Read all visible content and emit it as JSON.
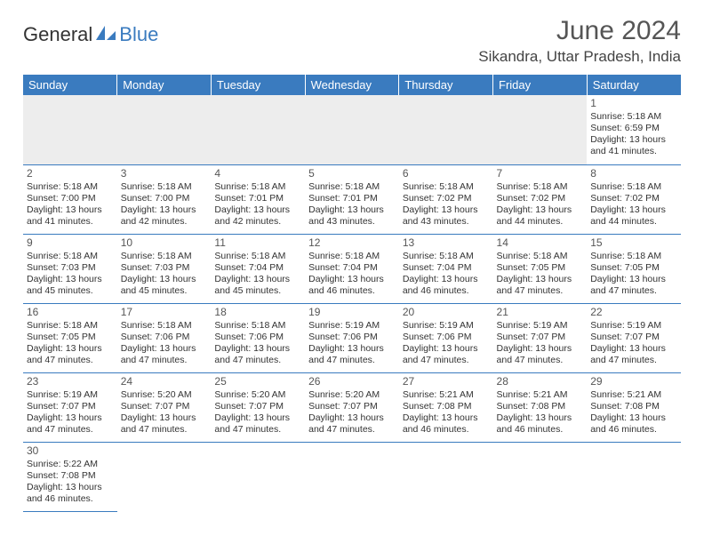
{
  "logo": {
    "gen": "General",
    "blue": "Blue"
  },
  "title": "June 2024",
  "location": "Sikandra, Uttar Pradesh, India",
  "colors": {
    "header_bg": "#3a7bbf",
    "header_text": "#ffffff",
    "border": "#3a7bbf",
    "empty_bg": "#ededed"
  },
  "weekdays": [
    "Sunday",
    "Monday",
    "Tuesday",
    "Wednesday",
    "Thursday",
    "Friday",
    "Saturday"
  ],
  "weeks": [
    [
      null,
      null,
      null,
      null,
      null,
      null,
      {
        "d": "1",
        "rise": "5:18 AM",
        "set": "6:59 PM",
        "day": "13 hours and 41 minutes."
      }
    ],
    [
      {
        "d": "2",
        "rise": "5:18 AM",
        "set": "7:00 PM",
        "day": "13 hours and 41 minutes."
      },
      {
        "d": "3",
        "rise": "5:18 AM",
        "set": "7:00 PM",
        "day": "13 hours and 42 minutes."
      },
      {
        "d": "4",
        "rise": "5:18 AM",
        "set": "7:01 PM",
        "day": "13 hours and 42 minutes."
      },
      {
        "d": "5",
        "rise": "5:18 AM",
        "set": "7:01 PM",
        "day": "13 hours and 43 minutes."
      },
      {
        "d": "6",
        "rise": "5:18 AM",
        "set": "7:02 PM",
        "day": "13 hours and 43 minutes."
      },
      {
        "d": "7",
        "rise": "5:18 AM",
        "set": "7:02 PM",
        "day": "13 hours and 44 minutes."
      },
      {
        "d": "8",
        "rise": "5:18 AM",
        "set": "7:02 PM",
        "day": "13 hours and 44 minutes."
      }
    ],
    [
      {
        "d": "9",
        "rise": "5:18 AM",
        "set": "7:03 PM",
        "day": "13 hours and 45 minutes."
      },
      {
        "d": "10",
        "rise": "5:18 AM",
        "set": "7:03 PM",
        "day": "13 hours and 45 minutes."
      },
      {
        "d": "11",
        "rise": "5:18 AM",
        "set": "7:04 PM",
        "day": "13 hours and 45 minutes."
      },
      {
        "d": "12",
        "rise": "5:18 AM",
        "set": "7:04 PM",
        "day": "13 hours and 46 minutes."
      },
      {
        "d": "13",
        "rise": "5:18 AM",
        "set": "7:04 PM",
        "day": "13 hours and 46 minutes."
      },
      {
        "d": "14",
        "rise": "5:18 AM",
        "set": "7:05 PM",
        "day": "13 hours and 47 minutes."
      },
      {
        "d": "15",
        "rise": "5:18 AM",
        "set": "7:05 PM",
        "day": "13 hours and 47 minutes."
      }
    ],
    [
      {
        "d": "16",
        "rise": "5:18 AM",
        "set": "7:05 PM",
        "day": "13 hours and 47 minutes."
      },
      {
        "d": "17",
        "rise": "5:18 AM",
        "set": "7:06 PM",
        "day": "13 hours and 47 minutes."
      },
      {
        "d": "18",
        "rise": "5:18 AM",
        "set": "7:06 PM",
        "day": "13 hours and 47 minutes."
      },
      {
        "d": "19",
        "rise": "5:19 AM",
        "set": "7:06 PM",
        "day": "13 hours and 47 minutes."
      },
      {
        "d": "20",
        "rise": "5:19 AM",
        "set": "7:06 PM",
        "day": "13 hours and 47 minutes."
      },
      {
        "d": "21",
        "rise": "5:19 AM",
        "set": "7:07 PM",
        "day": "13 hours and 47 minutes."
      },
      {
        "d": "22",
        "rise": "5:19 AM",
        "set": "7:07 PM",
        "day": "13 hours and 47 minutes."
      }
    ],
    [
      {
        "d": "23",
        "rise": "5:19 AM",
        "set": "7:07 PM",
        "day": "13 hours and 47 minutes."
      },
      {
        "d": "24",
        "rise": "5:20 AM",
        "set": "7:07 PM",
        "day": "13 hours and 47 minutes."
      },
      {
        "d": "25",
        "rise": "5:20 AM",
        "set": "7:07 PM",
        "day": "13 hours and 47 minutes."
      },
      {
        "d": "26",
        "rise": "5:20 AM",
        "set": "7:07 PM",
        "day": "13 hours and 47 minutes."
      },
      {
        "d": "27",
        "rise": "5:21 AM",
        "set": "7:08 PM",
        "day": "13 hours and 46 minutes."
      },
      {
        "d": "28",
        "rise": "5:21 AM",
        "set": "7:08 PM",
        "day": "13 hours and 46 minutes."
      },
      {
        "d": "29",
        "rise": "5:21 AM",
        "set": "7:08 PM",
        "day": "13 hours and 46 minutes."
      }
    ],
    [
      {
        "d": "30",
        "rise": "5:22 AM",
        "set": "7:08 PM",
        "day": "13 hours and 46 minutes."
      },
      null,
      null,
      null,
      null,
      null,
      null
    ]
  ],
  "labels": {
    "sunrise": "Sunrise:",
    "sunset": "Sunset:",
    "daylight": "Daylight:"
  }
}
